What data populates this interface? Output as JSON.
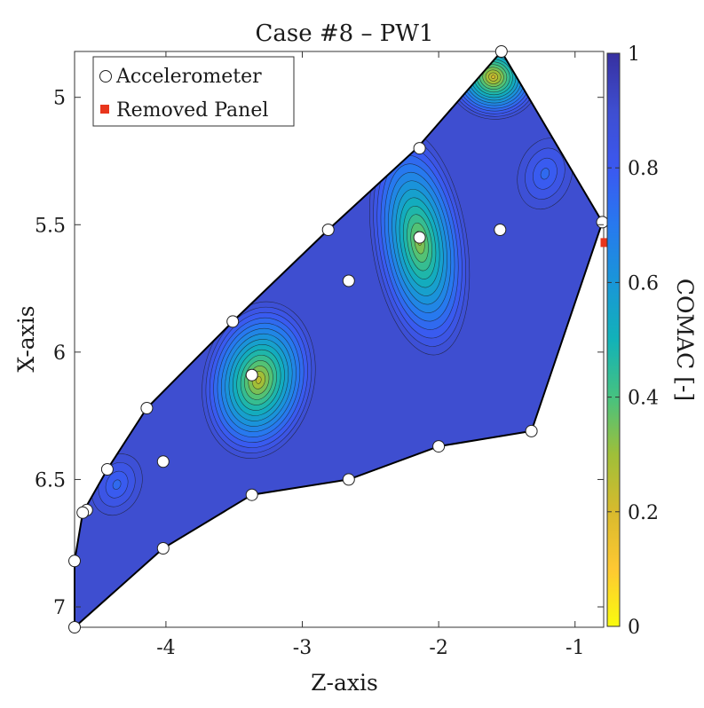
{
  "chart_data": {
    "type": "heatmap",
    "title": "Case #8 – PW1",
    "xlabel": "Z-axis",
    "ylabel": "X-axis",
    "colorbar_label": "COMAC [-]",
    "xlim": [
      -4.67,
      -0.79
    ],
    "ylim": [
      7.08,
      4.82
    ],
    "y_reversed": true,
    "x_ticks": [
      -4,
      -3,
      -2,
      -1
    ],
    "x_tick_labels": [
      "-4",
      "-3",
      "-2",
      "-1"
    ],
    "y_ticks": [
      5,
      5.5,
      6,
      6.5,
      7
    ],
    "y_tick_labels": [
      "5",
      "5.5",
      "6",
      "6.5",
      "7"
    ],
    "colorbar_ticks": [
      0,
      0.2,
      0.4,
      0.6,
      0.8,
      1
    ],
    "colorbar_tick_labels": [
      "0",
      "0.2",
      "0.4",
      "0.6",
      "0.8",
      "1"
    ],
    "colormap": "parula",
    "colormap_stops": [
      "#f9fb0e",
      "#fec832",
      "#d8ba2d",
      "#9fbf39",
      "#46c280",
      "#12b2b8",
      "#1996d8",
      "#2779ef",
      "#3b58f0",
      "#3e4ed0",
      "#3730a0"
    ],
    "legend_position": "top-left",
    "legend": [
      {
        "label": "Accelerometer",
        "marker": "circle"
      },
      {
        "label": "Removed Panel",
        "marker": "square",
        "color": "#e8351c"
      }
    ],
    "boundary": [
      [
        -4.67,
        7.08
      ],
      [
        -4.67,
        6.82
      ],
      [
        -4.61,
        6.63
      ],
      [
        -4.43,
        6.46
      ],
      [
        -4.14,
        6.22
      ],
      [
        -3.51,
        5.88
      ],
      [
        -2.81,
        5.52
      ],
      [
        -2.16,
        5.2
      ],
      [
        -1.54,
        4.82
      ],
      [
        -0.8,
        5.49
      ],
      [
        -1.32,
        6.31
      ],
      [
        -2.0,
        6.37
      ],
      [
        -2.66,
        6.5
      ],
      [
        -3.37,
        6.56
      ],
      [
        -4.02,
        6.77
      ],
      [
        -4.67,
        7.08
      ]
    ],
    "background_level": 0.9,
    "field_peaks": [
      {
        "z": -3.32,
        "x": 6.11,
        "min": 0.22,
        "rz": 0.42,
        "rx": 0.32,
        "rot": 0.2
      },
      {
        "z": -2.14,
        "x": 5.57,
        "min": 0.28,
        "rz": 0.36,
        "rx": 0.46,
        "rot": -0.15
      },
      {
        "z": -1.6,
        "x": 4.92,
        "min": 0.18,
        "rz": 0.35,
        "rx": 0.17,
        "rot": 0.2
      },
      {
        "z": -4.36,
        "x": 6.52,
        "min": 0.72,
        "rz": 0.2,
        "rx": 0.14,
        "rot": 0.4
      },
      {
        "z": -1.22,
        "x": 5.3,
        "min": 0.72,
        "rz": 0.22,
        "rx": 0.16,
        "rot": 0.3
      }
    ],
    "accelerometers": [
      [
        -1.54,
        4.82
      ],
      [
        -2.14,
        5.2
      ],
      [
        -0.8,
        5.49
      ],
      [
        -2.14,
        5.55
      ],
      [
        -1.55,
        5.52
      ],
      [
        -2.81,
        5.52
      ],
      [
        -2.66,
        5.72
      ],
      [
        -3.51,
        5.88
      ],
      [
        -3.37,
        6.09
      ],
      [
        -4.14,
        6.22
      ],
      [
        -1.32,
        6.31
      ],
      [
        -2.0,
        6.37
      ],
      [
        -4.43,
        6.46
      ],
      [
        -4.02,
        6.43
      ],
      [
        -2.66,
        6.5
      ],
      [
        -3.37,
        6.56
      ],
      [
        -4.58,
        6.62
      ],
      [
        -4.61,
        6.63
      ],
      [
        -4.02,
        6.77
      ],
      [
        -4.67,
        6.82
      ],
      [
        -4.67,
        7.08
      ]
    ],
    "removed_panels": [
      [
        -0.78,
        5.57
      ]
    ]
  }
}
